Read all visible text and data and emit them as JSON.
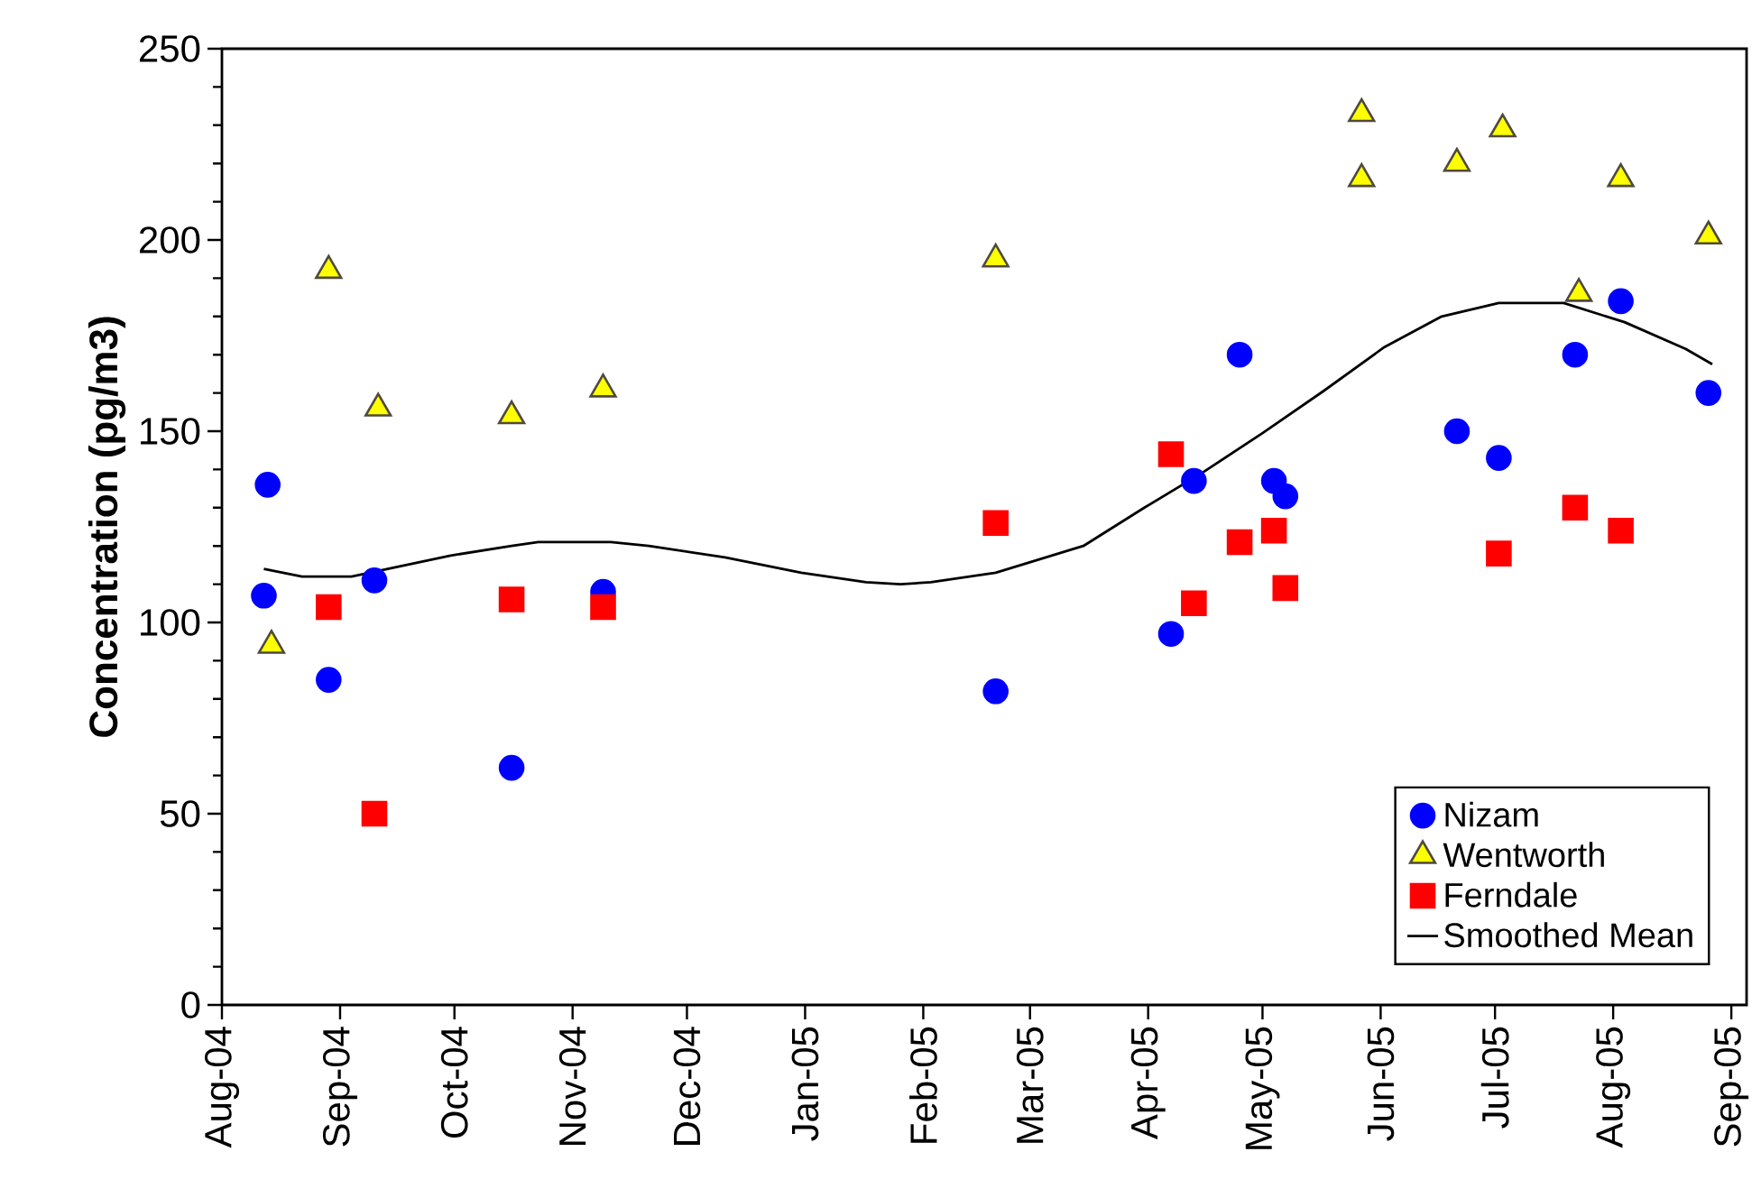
{
  "chart_data": {
    "type": "scatter",
    "ylabel": "Concentration (pg/m3)",
    "xlim": [
      "2004-08-01",
      "2005-09-05"
    ],
    "ylim": [
      0,
      250
    ],
    "xticks": [
      {
        "value": "2004-08-01",
        "label": "Aug-04"
      },
      {
        "value": "2004-09-01",
        "label": "Sep-04"
      },
      {
        "value": "2004-10-01",
        "label": "Oct-04"
      },
      {
        "value": "2004-11-01",
        "label": "Nov-04"
      },
      {
        "value": "2004-12-01",
        "label": "Dec-04"
      },
      {
        "value": "2005-01-01",
        "label": "Jan-05"
      },
      {
        "value": "2005-02-01",
        "label": "Feb-05"
      },
      {
        "value": "2005-03-01",
        "label": "Mar-05"
      },
      {
        "value": "2005-04-01",
        "label": "Apr-05"
      },
      {
        "value": "2005-05-01",
        "label": "May-05"
      },
      {
        "value": "2005-06-01",
        "label": "Jun-05"
      },
      {
        "value": "2005-07-01",
        "label": "Jul-05"
      },
      {
        "value": "2005-08-01",
        "label": "Aug-05"
      },
      {
        "value": "2005-09-01",
        "label": "Sep-05"
      }
    ],
    "yticks": [
      0,
      {
        "value": 10,
        "label": null
      },
      {
        "value": 20,
        "label": null
      },
      {
        "value": 30,
        "label": null
      },
      {
        "value": 40,
        "label": null
      },
      50,
      {
        "value": 60,
        "label": null
      },
      {
        "value": 70,
        "label": null
      },
      {
        "value": 80,
        "label": null
      },
      {
        "value": 90,
        "label": null
      },
      100,
      {
        "value": 110,
        "label": null
      },
      {
        "value": 120,
        "label": null
      },
      {
        "value": 130,
        "label": null
      },
      {
        "value": 140,
        "label": null
      },
      150,
      {
        "value": 160,
        "label": null
      },
      {
        "value": 170,
        "label": null
      },
      {
        "value": 180,
        "label": null
      },
      {
        "value": 190,
        "label": null
      },
      200,
      {
        "value": 210,
        "label": null
      },
      {
        "value": 220,
        "label": null
      },
      {
        "value": 230,
        "label": null
      },
      {
        "value": 240,
        "label": null
      },
      250
    ],
    "legend": "bottom right",
    "series": [
      {
        "name": "Nizam",
        "color": "#0000ff",
        "marker": "circle",
        "x": [
          "2004-08-12",
          "2004-08-13",
          "2004-08-29",
          "2004-09-10",
          "2004-10-16",
          "2004-11-09",
          "2005-02-20",
          "2005-04-07",
          "2005-04-13",
          "2005-04-25",
          "2005-05-04",
          "2005-05-07",
          "2005-06-21",
          "2005-07-02",
          "2005-07-22",
          "2005-08-03",
          "2005-08-26"
        ],
        "values": [
          107,
          136,
          85,
          111,
          62,
          108,
          82,
          97,
          137,
          170,
          137,
          133,
          150,
          143,
          170,
          184,
          160
        ]
      },
      {
        "name": "Wentworth",
        "color": "#ffff00",
        "marker": "triangle",
        "x": [
          "2004-08-14",
          "2004-08-29",
          "2004-09-11",
          "2004-10-16",
          "2004-11-09",
          "2005-02-20",
          "2005-05-27",
          "2005-05-27",
          "2005-06-21",
          "2005-07-03",
          "2005-07-23",
          "2005-08-03",
          "2005-08-26"
        ],
        "values": [
          94,
          192,
          156,
          154,
          161,
          195,
          233,
          216,
          220,
          229,
          186,
          216,
          201
        ]
      },
      {
        "name": "Ferndale",
        "color": "#ff0000",
        "marker": "square",
        "x": [
          "2004-08-29",
          "2004-09-10",
          "2004-10-16",
          "2004-11-09",
          "2005-02-20",
          "2005-04-07",
          "2005-04-13",
          "2005-04-25",
          "2005-05-04",
          "2005-05-07",
          "2005-07-02",
          "2005-07-22",
          "2005-08-03"
        ],
        "values": [
          104,
          50,
          106,
          104,
          126,
          144,
          105,
          121,
          124,
          109,
          118,
          130,
          124
        ]
      },
      {
        "name": "Smoothed Mean",
        "type": "line",
        "color": "#000000",
        "marker": "none",
        "x": [
          "2004-08-12",
          "2004-08-22",
          "2004-09-04",
          "2004-09-30",
          "2004-10-16",
          "2004-10-23",
          "2004-11-11",
          "2004-11-21",
          "2004-12-11",
          "2004-12-31",
          "2005-01-17",
          "2005-01-26",
          "2005-02-03",
          "2005-02-20",
          "2005-03-15",
          "2005-03-31",
          "2005-04-15",
          "2005-05-01",
          "2005-05-17",
          "2005-06-02",
          "2005-06-17",
          "2005-07-02",
          "2005-07-19",
          "2005-08-04",
          "2005-08-20",
          "2005-08-27"
        ],
        "values": [
          114,
          112,
          112,
          117.5,
          120,
          121,
          121,
          120,
          117,
          113,
          110.5,
          110,
          110.5,
          113,
          120,
          130,
          139,
          149.5,
          160.5,
          172,
          180,
          183.5,
          183.5,
          178.5,
          171.5,
          167.5
        ]
      }
    ]
  }
}
